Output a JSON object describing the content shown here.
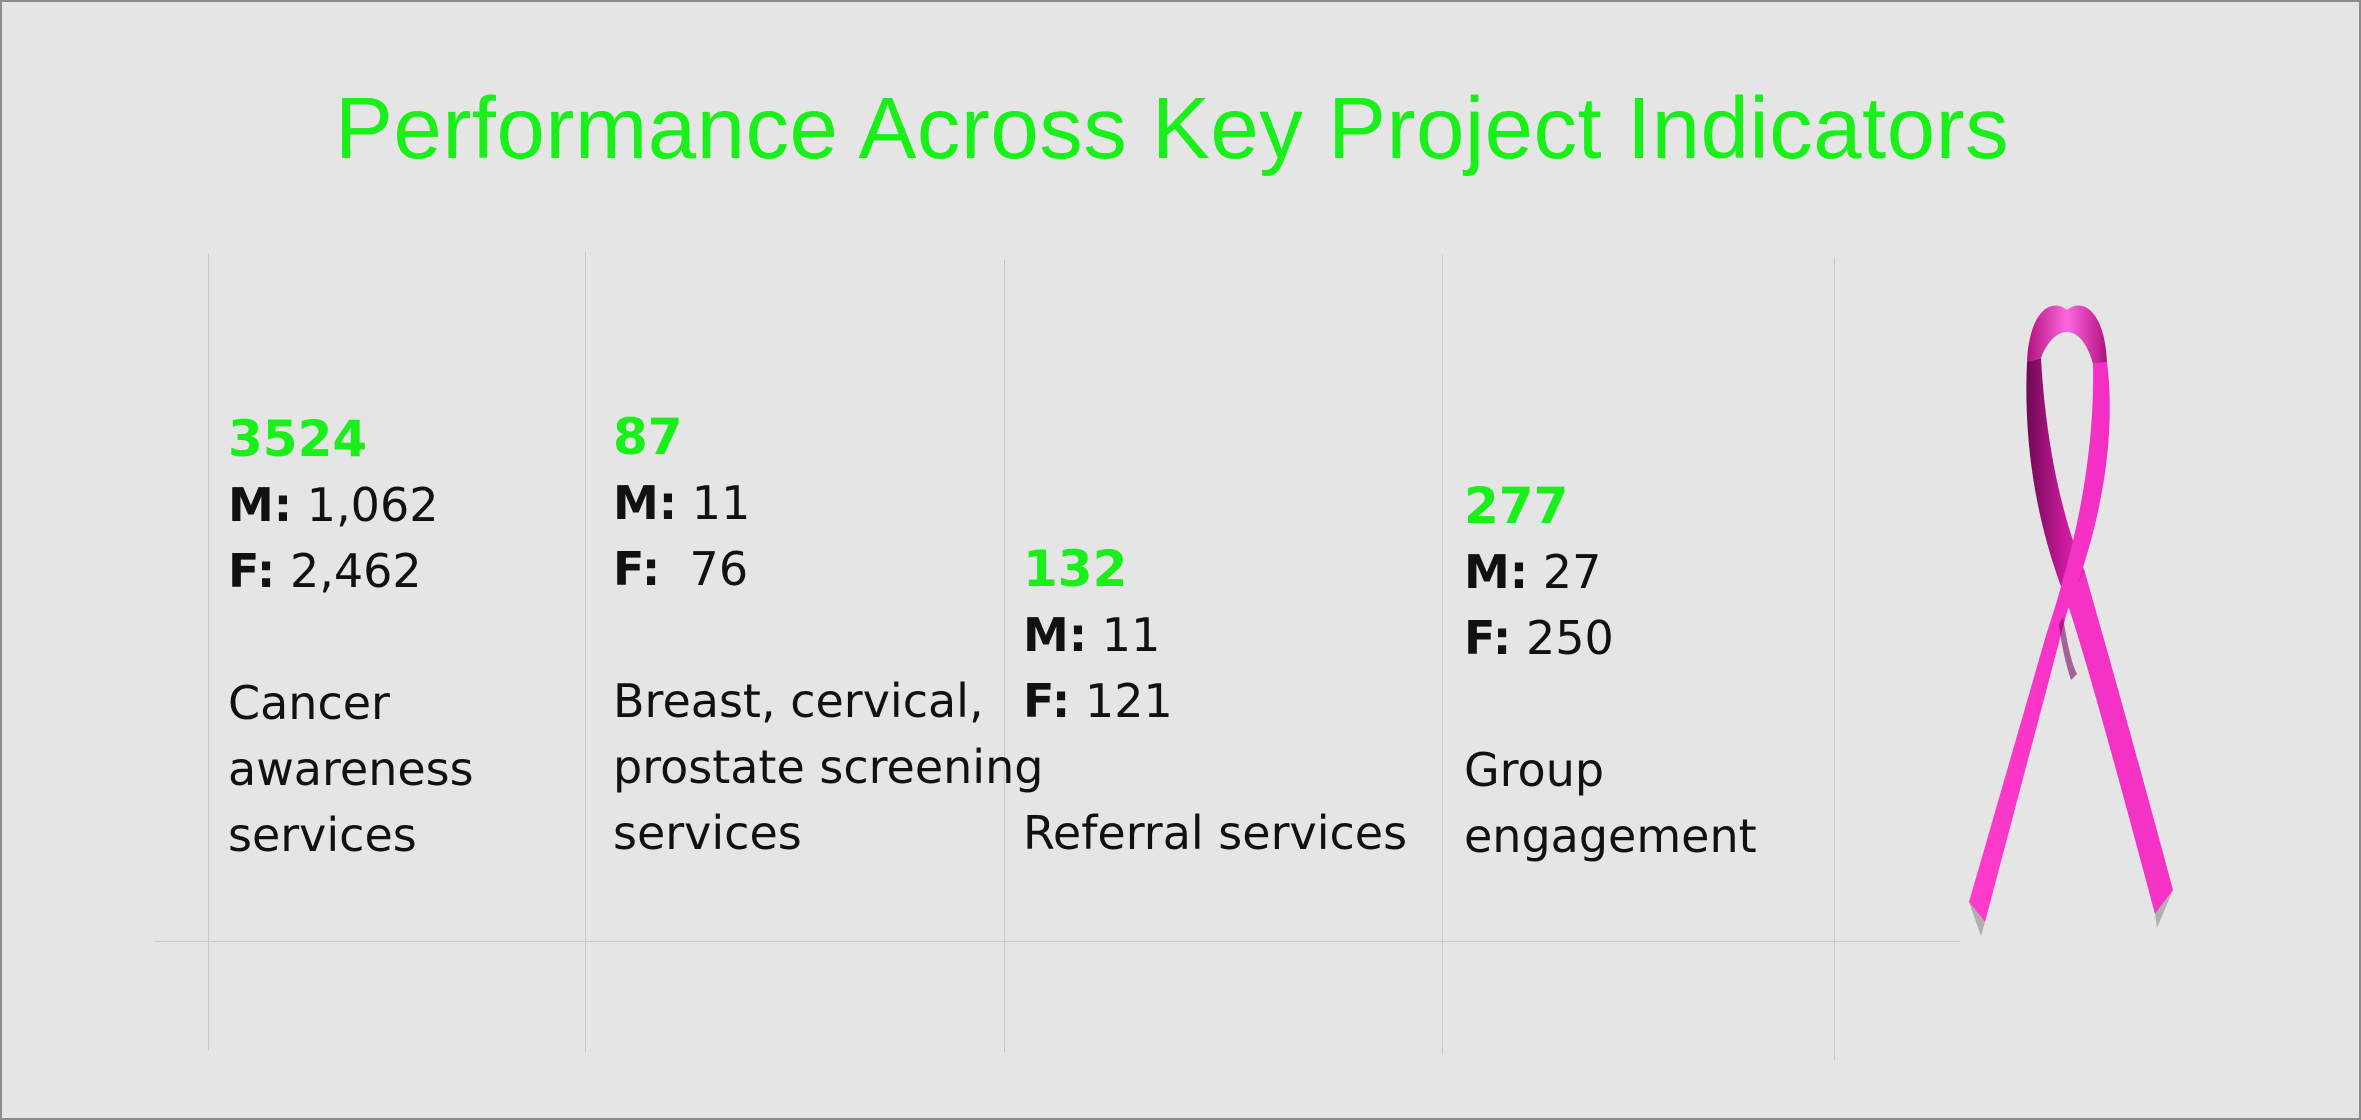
{
  "title": "Performance Across Key Project Indicators",
  "colors": {
    "accent": "#19f019",
    "background": "#e5e5e5",
    "ribbon": "#ff33cc"
  },
  "indicators": [
    {
      "total": "3524",
      "male_label": "M:",
      "male_value": "1,062",
      "female_label": "F:",
      "female_value": "2,462",
      "description": "Cancer\nawareness\nservices"
    },
    {
      "total": "87",
      "male_label": "M:",
      "male_value": "11",
      "female_label": "F:",
      "female_value": " 76",
      "description": "Breast, cervical,\nprostate screening\nservices"
    },
    {
      "total": "132",
      "male_label": "M:",
      "male_value": "11",
      "female_label": "F:",
      "female_value": "121",
      "description": "Referral services"
    },
    {
      "total": "277",
      "male_label": "M:",
      "male_value": "27",
      "female_label": "F:",
      "female_value": "250",
      "description": "Group\nengagement"
    }
  ],
  "decoration": {
    "icon": "pink-ribbon-icon"
  }
}
